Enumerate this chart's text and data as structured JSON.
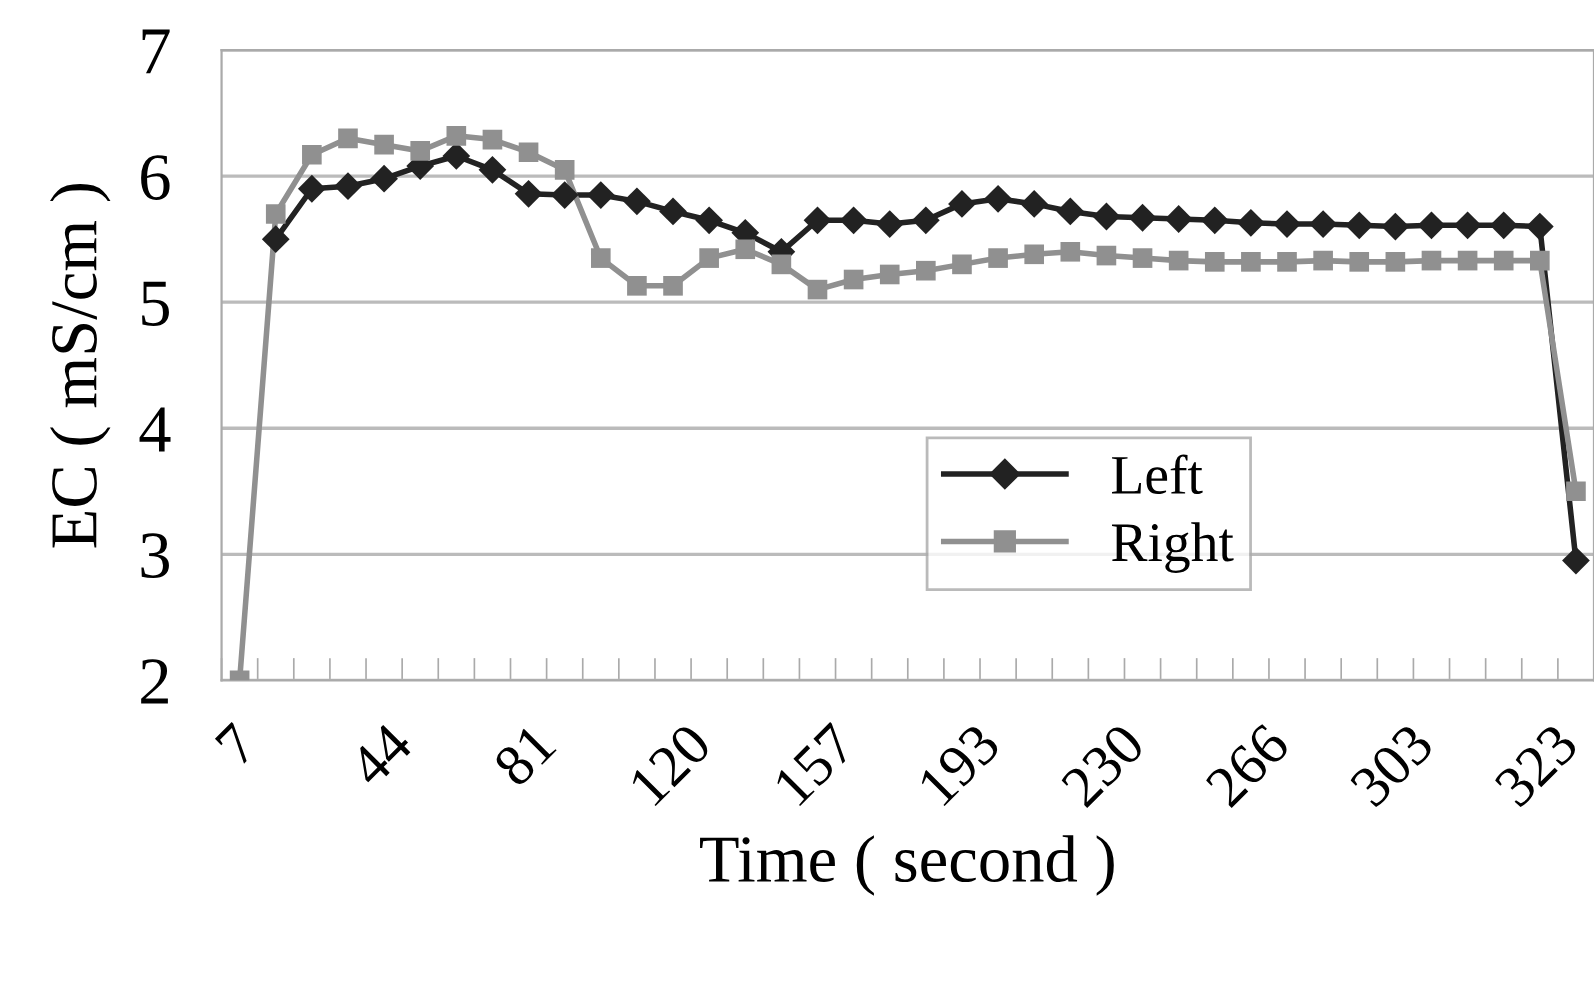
{
  "chart_data": {
    "type": "line",
    "xlabel": "Time ( second )",
    "ylabel": "EC ( mS/cm )",
    "categories": [
      "7",
      null,
      null,
      null,
      "44",
      null,
      null,
      null,
      "81",
      null,
      null,
      null,
      "120",
      null,
      null,
      null,
      "157",
      null,
      null,
      null,
      "193",
      null,
      null,
      null,
      "230",
      null,
      null,
      null,
      "266",
      null,
      null,
      null,
      "303",
      null,
      null,
      null,
      "323",
      null
    ],
    "series": [
      {
        "name": "Left",
        "color": "#222222",
        "marker": "diamond",
        "values": [
          null,
          5.5,
          5.9,
          5.92,
          5.98,
          6.08,
          6.16,
          6.05,
          5.86,
          5.85,
          5.85,
          5.8,
          5.72,
          5.65,
          5.55,
          5.4,
          5.65,
          5.65,
          5.62,
          5.65,
          5.78,
          5.82,
          5.78,
          5.72,
          5.68,
          5.67,
          5.66,
          5.65,
          5.63,
          5.62,
          5.62,
          5.61,
          5.6,
          5.61,
          5.61,
          5.61,
          5.6,
          2.95
        ]
      },
      {
        "name": "Right",
        "color": "#909090",
        "marker": "square",
        "values": [
          2,
          5.7,
          6.17,
          6.3,
          6.25,
          6.2,
          6.32,
          6.29,
          6.19,
          6.05,
          5.35,
          5.13,
          5.13,
          5.35,
          5.42,
          5.3,
          5.1,
          5.18,
          5.22,
          5.25,
          5.3,
          5.35,
          5.38,
          5.4,
          5.37,
          5.35,
          5.33,
          5.32,
          5.32,
          5.32,
          5.33,
          5.32,
          5.32,
          5.33,
          5.33,
          5.33,
          5.33,
          3.5
        ]
      }
    ],
    "ylim": [
      2,
      7
    ],
    "yticks": [
      2,
      3,
      4,
      5,
      6,
      7
    ],
    "grid": "y",
    "legend": "lower right"
  }
}
